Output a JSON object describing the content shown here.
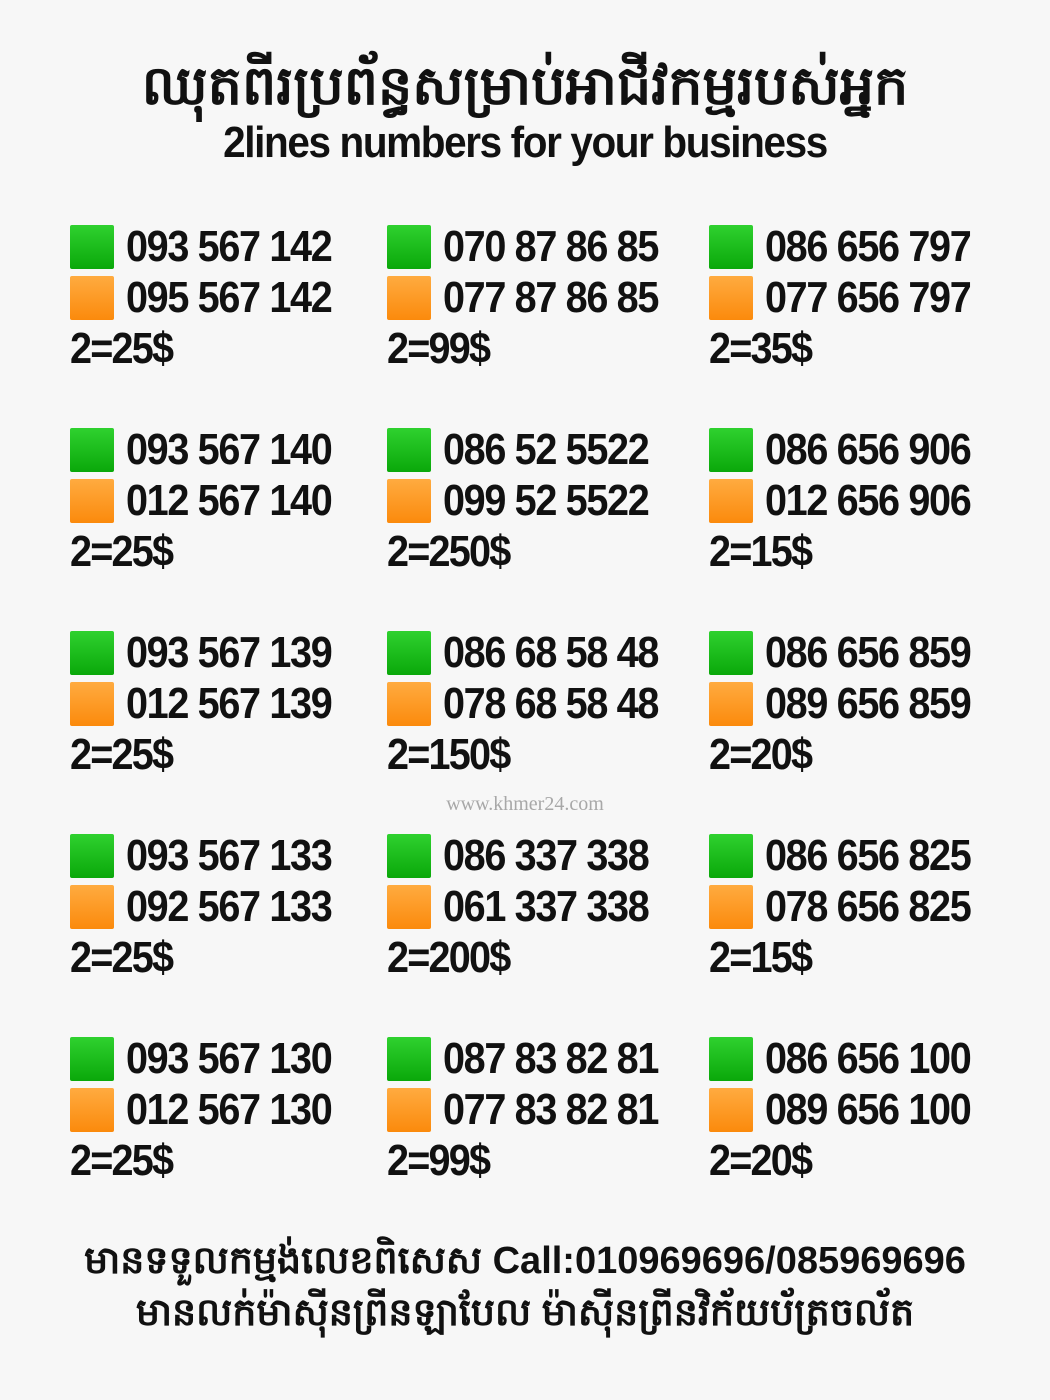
{
  "header": {
    "title_kh": "ឈុតពីរប្រព័ន្ធសម្រាប់អាជីវកម្មរបស់អ្នក",
    "title_en": "2lines numbers for your business"
  },
  "colors": {
    "first_line": "#14b814",
    "second_line": "#fb920f"
  },
  "offers": [
    {
      "line1": "093 567 142",
      "line2": "095 567 142",
      "price": "2=25$"
    },
    {
      "line1": "070 87 86 85",
      "line2": "077 87 86 85",
      "price": "2=99$"
    },
    {
      "line1": "086 656 797",
      "line2": "077 656 797",
      "price": "2=35$"
    },
    {
      "line1": "093 567 140",
      "line2": "012 567 140",
      "price": "2=25$"
    },
    {
      "line1": "086 52 5522",
      "line2": "099 52 5522",
      "price": "2=250$"
    },
    {
      "line1": "086 656 906",
      "line2": "012 656 906",
      "price": "2=15$"
    },
    {
      "line1": "093 567 139",
      "line2": "012 567 139",
      "price": "2=25$"
    },
    {
      "line1": "086 68 58 48",
      "line2": "078 68 58 48",
      "price": "2=150$"
    },
    {
      "line1": "086 656 859",
      "line2": "089 656 859",
      "price": "2=20$"
    },
    {
      "line1": "093 567 133",
      "line2": "092 567 133",
      "price": "2=25$"
    },
    {
      "line1": "086 337 338",
      "line2": "061 337 338",
      "price": "2=200$"
    },
    {
      "line1": "086 656 825",
      "line2": "078 656 825",
      "price": "2=15$"
    },
    {
      "line1": "093 567 130",
      "line2": "012 567 130",
      "price": "2=25$"
    },
    {
      "line1": "087 83 82 81",
      "line2": "077 83 82 81",
      "price": "2=99$"
    },
    {
      "line1": "086 656 100",
      "line2": "089 656 100",
      "price": "2=20$"
    }
  ],
  "footer": {
    "line1": "មានទទួលកម្មង់លេខពិសេស Call:010969696/085969696",
    "line2": "មានលក់ម៉ាស៊ីនព្រីនឡាបែល ម៉ាស៊ីនព្រីនវិក័យប័ត្រចល័ត"
  },
  "watermark": "www.khmer24.com"
}
